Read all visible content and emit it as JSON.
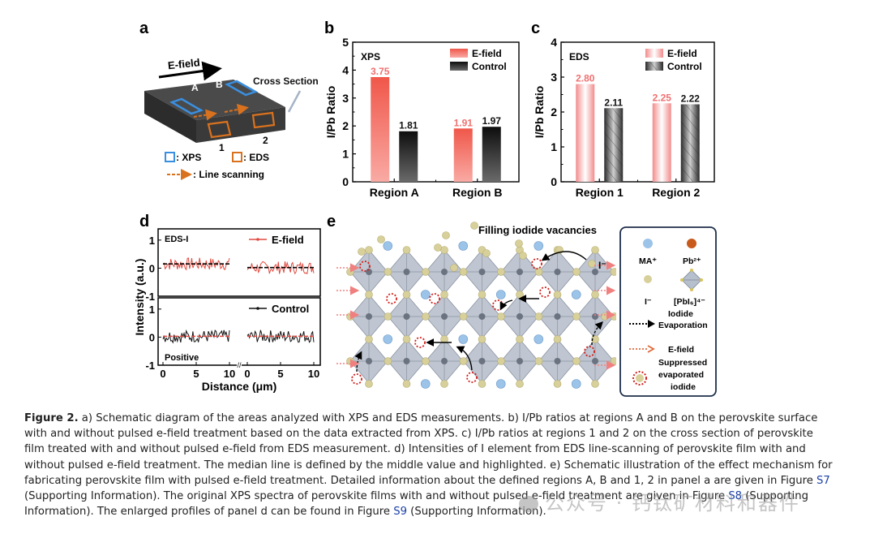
{
  "panels": {
    "a": {
      "letter": "a",
      "efield_label": "E-field",
      "region_A": "A",
      "region_B": "B",
      "cross_section": "Cross Section",
      "region_1": "1",
      "region_2": "2",
      "legend_xps": ": XPS",
      "legend_eds": ": EDS",
      "legend_line": ": Line scanning",
      "colors": {
        "xps": "#3a8fe0",
        "eds": "#d9721f",
        "film": "#3d3d3d"
      }
    },
    "b": {
      "letter": "b"
    },
    "c": {
      "letter": "c"
    },
    "d": {
      "letter": "d"
    },
    "e": {
      "letter": "e",
      "title": "Filling iodide vacancies",
      "ion_label": "I⁻",
      "legend": {
        "ma": "MA⁺",
        "pb": "Pb²⁺",
        "i": "I⁻",
        "octa": "[PbI₆]⁴⁻",
        "evap_line1": "Iodide",
        "evap_line2": "Evaporation",
        "efield": "E-field",
        "supp_line1": "Suppressed",
        "supp_line2": "evaporated",
        "supp_line3": "iodide"
      },
      "colors": {
        "ma": "#9cc3e8",
        "pb": "#c85a1c",
        "i": "#d8d09a",
        "octa": "#a9b3c2"
      }
    }
  },
  "chart_data": [
    {
      "id": "b",
      "type": "bar",
      "title": "",
      "inset_label": "XPS",
      "categories": [
        "Region A",
        "Region B"
      ],
      "series": [
        {
          "name": "E-field",
          "values": [
            3.75,
            1.91
          ],
          "labels": [
            "3.75",
            "1.91"
          ],
          "color": "#f0574a",
          "label_color": "#f07070"
        },
        {
          "name": "Control",
          "values": [
            1.81,
            1.97
          ],
          "labels": [
            "1.81",
            "1.97"
          ],
          "color": "#1a1a1a",
          "label_color": "#111111"
        }
      ],
      "xlabel": "",
      "ylabel": "I/Pb  Ratio",
      "ylim": [
        0,
        5
      ],
      "yticks": [
        "0",
        "1",
        "2",
        "3",
        "4",
        "5"
      ],
      "legend": "top-right",
      "grid": false
    },
    {
      "id": "c",
      "type": "bar",
      "title": "",
      "inset_label": "EDS",
      "categories": [
        "Region 1",
        "Region 2"
      ],
      "series": [
        {
          "name": "E-field",
          "values": [
            2.8,
            2.25
          ],
          "labels": [
            "2.80",
            "2.25"
          ],
          "color": "#f07a7a",
          "label_color": "#f07070"
        },
        {
          "name": "Control",
          "values": [
            2.11,
            2.22
          ],
          "labels": [
            "2.11",
            "2.22"
          ],
          "color": "#333333",
          "label_color": "#111111",
          "pattern": "hatched"
        }
      ],
      "xlabel": "",
      "ylabel": "I/Pb  Ratio",
      "ylim": [
        0,
        4
      ],
      "yticks": [
        "0",
        "1",
        "2",
        "3",
        "4"
      ],
      "legend": "top-right",
      "grid": false
    },
    {
      "id": "d",
      "type": "line",
      "title": "",
      "subplots": [
        {
          "inset_label": "EDS-I",
          "legend": "E-field",
          "color": "#e04a40",
          "median_segments": [
            0.15,
            0.02
          ]
        },
        {
          "inset_label": "Positive",
          "legend": "Control",
          "color": "#111111",
          "median_segments": [
            0.03,
            0.03
          ]
        }
      ],
      "xlabel": "Distance (μm)",
      "ylabel": "Intensity (a.u.)",
      "xlim": [
        0,
        10
      ],
      "ylim": [
        -1,
        1.4
      ],
      "xticks": [
        "0",
        "5",
        "10",
        "0",
        "5",
        "10"
      ],
      "yticks": [
        "-1",
        "0",
        "1"
      ],
      "axis_break": true,
      "grid": false
    }
  ],
  "caption": {
    "lead": "Figure 2.",
    "part1": " a) Schematic diagram of the areas analyzed with XPS and EDS measurements. b) I/Pb ratios at regions A and B on the perovskite surface with and without pulsed e-field treatment based on the data extracted from XPS. c) I/Pb ratios at regions 1 and 2 on the cross section of perovskite film treated with and without pulsed e-field from EDS measurement. d) Intensities of I element from EDS line-scanning of perovskite film with and without pulsed e-field treatment. The median line is defined by the middle value and highlighted. e) Schematic illustration of the effect mechanism for fabricating perovskite film with pulsed e-field treatment. Detailed information about the defined regions A, B and 1, 2 in panel a are given in Figure ",
    "ref1": "S7",
    "part2": " (Supporting Information). The original XPS spectra of perovskite films with and without pulsed e-field treatment are given in Figure ",
    "ref2": "S8",
    "part3": " (Supporting Information). The enlarged profiles of panel d can be found in Figure ",
    "ref3": "S9",
    "part4": " (Supporting Information)."
  },
  "watermark": "公众号 · 钙钛矿材料和器件"
}
